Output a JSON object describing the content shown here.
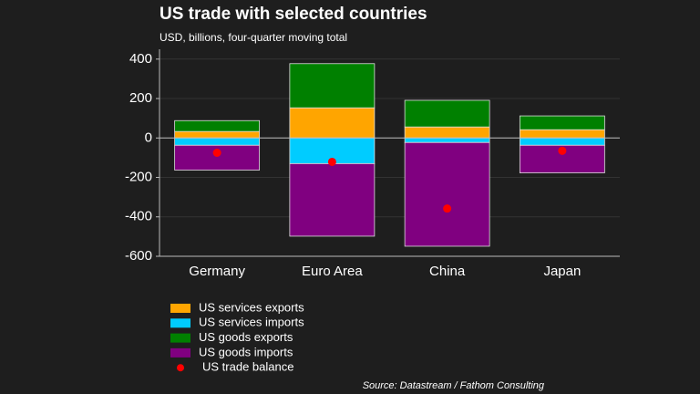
{
  "chart_data": {
    "type": "bar",
    "title": "US trade with selected countries",
    "subtitle": "USD, billions, four-quarter moving total",
    "source": "Source: Datastream / Fathom Consulting",
    "categories": [
      "Germany",
      "Euro Area",
      "China",
      "Japan"
    ],
    "series": [
      {
        "name": "US services exports",
        "color": "#ffa500",
        "type": "bar",
        "values": [
          33,
          153,
          56,
          42
        ]
      },
      {
        "name": "US services imports",
        "color": "#00ccff",
        "type": "bar",
        "values": [
          -37,
          -130,
          -23,
          -37
        ]
      },
      {
        "name": "US goods exports",
        "color": "#008000",
        "type": "bar",
        "values": [
          55,
          224,
          135,
          70
        ]
      },
      {
        "name": "US goods imports",
        "color": "#800080",
        "type": "bar",
        "values": [
          -126,
          -368,
          -526,
          -140
        ]
      },
      {
        "name": "US trade balance",
        "color": "#ff0000",
        "type": "dot",
        "values": [
          -75,
          -121,
          -358,
          -65
        ]
      }
    ],
    "ylim": [
      -600,
      450
    ],
    "yticks": [
      -600,
      -400,
      -200,
      0,
      200,
      400
    ],
    "grid": true
  }
}
